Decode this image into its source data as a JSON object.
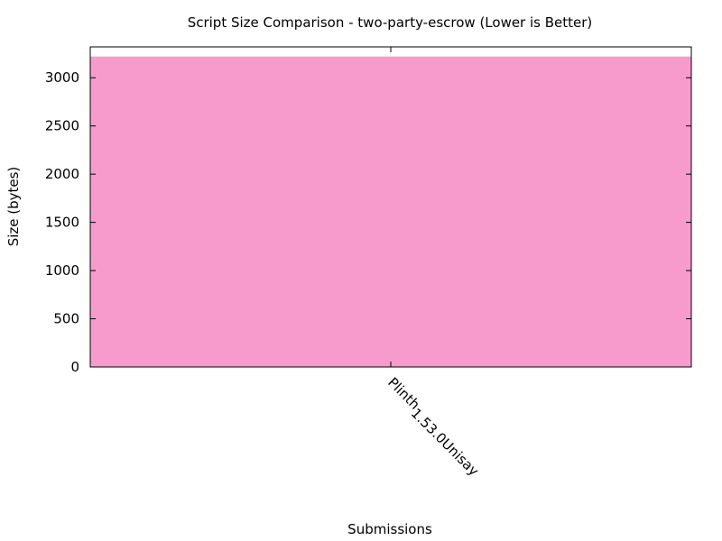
{
  "chart_data": {
    "type": "bar",
    "title": "Script Size Comparison - two-party-escrow (Lower is Better)",
    "xlabel": "Submissions",
    "ylabel": "Size (bytes)",
    "categories": [
      "Plinth_1.53.0_Unisay"
    ],
    "category_display": [
      {
        "base": "Plinth",
        "sub1": "1.53.0",
        "mid": "",
        "sub2": "Unisay",
        "rest": ""
      }
    ],
    "values": [
      3220
    ],
    "ylim": [
      0,
      3320
    ],
    "yticks": [
      0,
      500,
      1000,
      1500,
      2000,
      2500,
      3000
    ],
    "grid": false,
    "legend": "none",
    "colors": {
      "bar": "#f79bcc",
      "axis": "#000000"
    }
  }
}
